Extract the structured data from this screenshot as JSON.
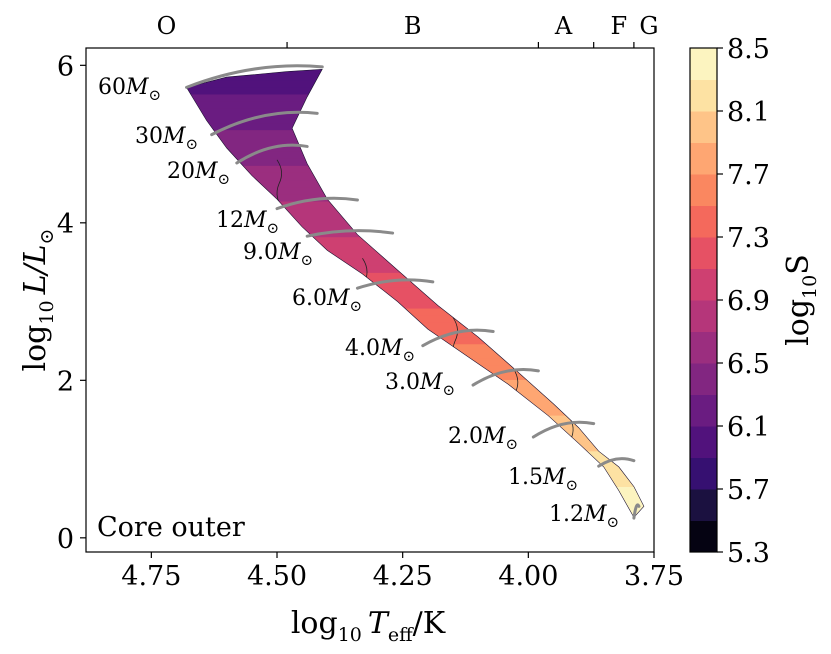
{
  "chart_data": {
    "type": "contour-hr-diagram",
    "xlabel_main": "log",
    "xlabel_sub": "10",
    "xlabel_var": "T",
    "xlabel_var_sub": "eff",
    "xlabel_unit": "/K",
    "ylabel_main": "log",
    "ylabel_sub": "10",
    "ylabel_var": "L/L",
    "ylabel_sun": "⊙",
    "colorbar_label_main": "log",
    "colorbar_label_sub": "10",
    "colorbar_label_var": "S",
    "annotation": "Core outer",
    "xlim": [
      4.88,
      3.75
    ],
    "ylim": [
      -0.18,
      6.22
    ],
    "x_reversed": true,
    "x_ticks": [
      4.75,
      4.5,
      4.25,
      4.0,
      3.75
    ],
    "x_tick_labels": [
      "4.75",
      "4.50",
      "4.25",
      "4.00",
      "3.75"
    ],
    "y_ticks": [
      0,
      2,
      4,
      6
    ],
    "y_tick_labels": [
      "0",
      "2",
      "4",
      "6"
    ],
    "spectral_classes": [
      {
        "label": "O",
        "teff": 4.72
      },
      {
        "label": "B",
        "teff": 4.23
      },
      {
        "label": "A",
        "teff": 3.93
      },
      {
        "label": "F",
        "teff": 3.82
      },
      {
        "label": "G",
        "teff": 3.76
      }
    ],
    "spectral_boundaries": [
      4.48,
      3.98,
      3.87,
      3.79
    ],
    "colorbar": {
      "min": 5.3,
      "max": 8.5,
      "ticks": [
        "5.3",
        "5.7",
        "6.1",
        "6.5",
        "6.9",
        "7.3",
        "7.7",
        "8.1",
        "8.5"
      ],
      "levels": [
        "#050312",
        "#1b1140",
        "#361071",
        "#51127c",
        "#6a1c81",
        "#822681",
        "#9b2e7f",
        "#b5367a",
        "#ce4071",
        "#e65164",
        "#f4695c",
        "#fa8760",
        "#fea672",
        "#fec488",
        "#fde2a3",
        "#fcf4c0"
      ]
    },
    "mass_tracks": [
      {
        "label": "60",
        "unit": "M",
        "sun": "⊙"
      },
      {
        "label": "30",
        "unit": "M",
        "sun": "⊙"
      },
      {
        "label": "20",
        "unit": "M",
        "sun": "⊙"
      },
      {
        "label": "12",
        "unit": "M",
        "sun": "⊙"
      },
      {
        "label": "9.0",
        "unit": "M",
        "sun": "⊙"
      },
      {
        "label": "6.0",
        "unit": "M",
        "sun": "⊙"
      },
      {
        "label": "4.0",
        "unit": "M",
        "sun": "⊙"
      },
      {
        "label": "3.0",
        "unit": "M",
        "sun": "⊙"
      },
      {
        "label": "2.0",
        "unit": "M",
        "sun": "⊙"
      },
      {
        "label": "1.5",
        "unit": "M",
        "sun": "⊙"
      },
      {
        "label": "1.2",
        "unit": "M",
        "sun": "⊙"
      }
    ],
    "band_value_range": [
      5.9,
      8.5
    ]
  }
}
